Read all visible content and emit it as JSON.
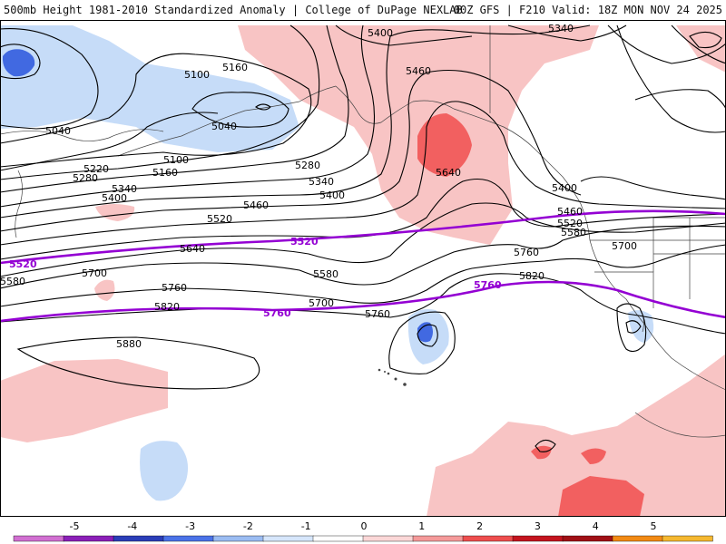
{
  "header": {
    "title": "500mb Height 1981-2010 Standardized Anomaly | College of DuPage NEXLAB",
    "run_info": "00Z GFS | F210 Valid: 18Z MON NOV 24 2025"
  },
  "contour_labels": {
    "h5040a": "5040",
    "h5040b": "5040",
    "h5100a": "5100",
    "h5100b": "5100",
    "h5160a": "5160",
    "h5160b": "5160",
    "h5220": "5220",
    "h5280a": "5280",
    "h5280b": "5280",
    "h5340a": "5340",
    "h5340b": "5340",
    "h5340c": "5340",
    "h5400a": "5400",
    "h5400b": "5400",
    "h5400c": "5400",
    "h5400d": "5400",
    "h5460a": "5460",
    "h5460b": "5460",
    "h5460c": "5460",
    "h5520a": "5520",
    "h5520b": "5520",
    "h5580a": "5580",
    "h5580b": "5580",
    "h5580c": "5580",
    "h5640a": "5640",
    "h5640b": "5640",
    "h5700a": "5700",
    "h5700b": "5700",
    "h5700c": "5700",
    "h5760a": "5760",
    "h5760b": "5760",
    "h5760c": "5760",
    "h5820a": "5820",
    "h5820b": "5820",
    "h5880": "5880"
  },
  "highlight_labels": {
    "p5520a": "5520",
    "p5520b": "5520",
    "p5760a": "5760",
    "p5760b": "5760"
  },
  "colors": {
    "highlight_contour": "#9400d3",
    "anom_neg_strong": "#4169e1",
    "anom_neg_weak": "#c6dcf8",
    "anom_pos_weak": "#f8c4c4",
    "anom_pos_strong": "#f26060"
  },
  "colorbar": {
    "ticks": [
      "-5",
      "-4",
      "-3",
      "-2",
      "-1",
      "0",
      "1",
      "2",
      "3",
      "4",
      "5"
    ],
    "colors": [
      "#d16fd1",
      "#8b1fb8",
      "#2a3db8",
      "#4a72e8",
      "#9bbcf2",
      "#d6e6fb",
      "#ffffff",
      "#fbd7d7",
      "#f59a9a",
      "#ee4e4e",
      "#c4141e",
      "#a01015",
      "#f28a14",
      "#f5b830"
    ]
  }
}
